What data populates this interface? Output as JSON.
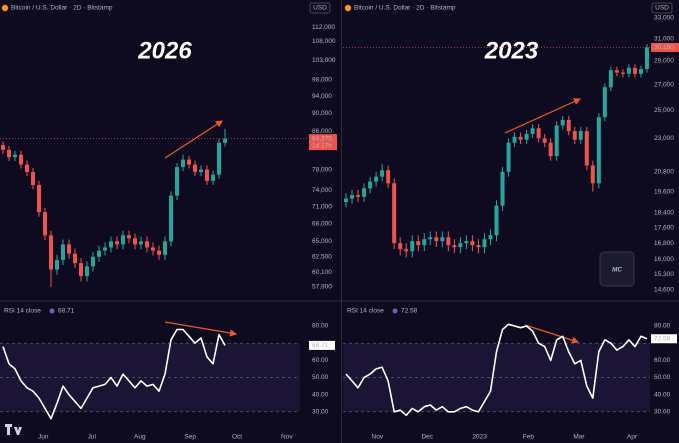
{
  "chart_data": [
    {
      "type": "candlestick",
      "title": "Bitcoin / U.S. Dollar · 2D · Bitstamp",
      "currency": "USD",
      "annotation": "2026",
      "log": true,
      "up_color": "#26a69a",
      "down_color": "#ef5350",
      "xlim": [
        0,
        50
      ],
      "ylim": [
        56000,
        120000
      ],
      "yticks": [
        {
          "value": 112000,
          "label": "112,000"
        },
        {
          "value": 108000,
          "label": "108,000"
        },
        {
          "value": 103000,
          "label": "103,000"
        },
        {
          "value": 98000,
          "label": "98,000"
        },
        {
          "value": 94000,
          "label": "94,000"
        },
        {
          "value": 90000,
          "label": "90,000"
        },
        {
          "value": 86000,
          "label": "86,000"
        },
        {
          "value": 78000,
          "label": "78,000"
        },
        {
          "value": 74000,
          "label": "74,000"
        },
        {
          "value": 71000,
          "label": "71,000"
        },
        {
          "value": 68000,
          "label": "68,000"
        },
        {
          "value": 65000,
          "label": "65,000"
        },
        {
          "value": 62500,
          "label": "62,500"
        },
        {
          "value": 60100,
          "label": "60,100"
        },
        {
          "value": 57900,
          "label": "57,900"
        }
      ],
      "open": [
        83000,
        82000,
        80500,
        81000,
        79000,
        77500,
        75000,
        70000,
        66000,
        60500,
        62000,
        64500,
        63000,
        61500,
        59500,
        61000,
        62500,
        63500,
        64000,
        65000,
        64500,
        66000,
        65500,
        64500,
        65000,
        64000,
        63500,
        62800,
        65000,
        73000,
        78500,
        80000,
        79000,
        77500,
        78000,
        75800,
        77000,
        83500
      ],
      "high": [
        83800,
        82800,
        81800,
        81800,
        79800,
        78300,
        75800,
        70800,
        66800,
        62800,
        65300,
        65300,
        63800,
        62300,
        61800,
        63300,
        64300,
        64800,
        65800,
        65800,
        66800,
        66800,
        66300,
        65800,
        65800,
        64800,
        64300,
        65800,
        73800,
        79300,
        81000,
        80800,
        79800,
        78800,
        78800,
        77800,
        84300,
        86500
      ],
      "low": [
        81200,
        79700,
        79700,
        78200,
        76700,
        74200,
        69200,
        65200,
        57900,
        59700,
        61200,
        62200,
        60700,
        58700,
        58700,
        60200,
        61700,
        62700,
        63200,
        63700,
        63700,
        64700,
        63700,
        63700,
        63200,
        62700,
        62000,
        62000,
        64200,
        72200,
        77700,
        78200,
        76700,
        76700,
        75000,
        75000,
        76200,
        82700
      ],
      "close": [
        82000,
        80500,
        81000,
        79000,
        77500,
        75000,
        70000,
        66000,
        60500,
        62000,
        64500,
        63000,
        61500,
        59500,
        61000,
        62500,
        63500,
        64000,
        65000,
        64500,
        66000,
        65500,
        64500,
        65000,
        64000,
        63500,
        62800,
        65000,
        73000,
        78500,
        80000,
        79000,
        77500,
        78000,
        75800,
        77000,
        83500,
        84375
      ],
      "last_price_label": "84,375",
      "countdown": "1d 17h"
    },
    {
      "type": "line",
      "title": "RSI 14 close",
      "color": "#ffffff",
      "band_color": "#7e57c2",
      "xlim": [
        0,
        50
      ],
      "ylim": [
        20,
        94
      ],
      "levels": [
        70,
        50,
        30
      ],
      "xticks": [
        {
          "value": 7.2,
          "label": "Jun"
        },
        {
          "value": 15.3,
          "label": "Jul"
        },
        {
          "value": 23.3,
          "label": "Aug"
        },
        {
          "value": 31.7,
          "label": "Sep"
        },
        {
          "value": 39.5,
          "label": "Oct"
        },
        {
          "value": 47.8,
          "label": "Nov"
        }
      ],
      "yticks": [
        {
          "value": 80,
          "label": "80.00"
        },
        {
          "value": 60,
          "label": "60.00"
        },
        {
          "value": 50,
          "label": "50.00"
        },
        {
          "value": 40,
          "label": "40.00"
        },
        {
          "value": 30,
          "label": "30.00"
        }
      ],
      "values": [
        68,
        58,
        55,
        48,
        44,
        42,
        38,
        32,
        26,
        35,
        45,
        40,
        36,
        32,
        38,
        44,
        45,
        46,
        50,
        45,
        52,
        48,
        44,
        48,
        45,
        46,
        42,
        52,
        72,
        78,
        78,
        74,
        70,
        73,
        62,
        58,
        75,
        68.71
      ]
    },
    {
      "type": "candlestick",
      "title": "Bitcoin / U.S. Dollar · 2D · Bitstamp",
      "currency": "USD",
      "annotation": "2023",
      "log": true,
      "logo": "MC",
      "up_color": "#26a69a",
      "down_color": "#ef5350",
      "xlim": [
        0,
        51
      ],
      "ylim": [
        14170,
        34800
      ],
      "yticks": [
        {
          "value": 33000,
          "label": "33,000"
        },
        {
          "value": 31000,
          "label": "31,000"
        },
        {
          "value": 29000,
          "label": "29,000"
        },
        {
          "value": 27000,
          "label": "27,000"
        },
        {
          "value": 25000,
          "label": "25,000"
        },
        {
          "value": 23000,
          "label": "23,000"
        },
        {
          "value": 20800,
          "label": "20,800"
        },
        {
          "value": 19600,
          "label": "19,600"
        },
        {
          "value": 18400,
          "label": "18,400"
        },
        {
          "value": 17600,
          "label": "17,600"
        },
        {
          "value": 16800,
          "label": "16,800"
        },
        {
          "value": 16000,
          "label": "16,000"
        },
        {
          "value": 15300,
          "label": "15,300"
        },
        {
          "value": 14600,
          "label": "14,600"
        }
      ],
      "open": [
        19000,
        19200,
        19400,
        19300,
        19800,
        20200,
        20500,
        20900,
        20100,
        16800,
        16500,
        16400,
        16900,
        16700,
        17000,
        17100,
        16900,
        17100,
        16700,
        16600,
        16800,
        16900,
        16700,
        16600,
        17000,
        17200,
        18800,
        20800,
        22700,
        23100,
        22900,
        23300,
        23700,
        23000,
        22700,
        21800,
        23900,
        24300,
        23500,
        22900,
        23500,
        21200,
        20100,
        24500,
        26800,
        28200,
        28000,
        27900,
        28400,
        27900,
        28300
      ],
      "high": [
        19500,
        19700,
        19700,
        20100,
        20500,
        20800,
        21300,
        21200,
        20400,
        17100,
        16800,
        17200,
        17200,
        17300,
        17400,
        17400,
        17400,
        17400,
        17000,
        17100,
        17200,
        17200,
        17000,
        17300,
        17500,
        19100,
        21100,
        23000,
        23400,
        23400,
        23600,
        24000,
        24000,
        23300,
        23000,
        24200,
        24600,
        24600,
        23800,
        23800,
        23800,
        21500,
        24800,
        27100,
        28500,
        28500,
        28300,
        28700,
        28700,
        28600,
        30500
      ],
      "low": [
        18700,
        18900,
        19000,
        19000,
        19500,
        19900,
        20200,
        19800,
        16500,
        16200,
        16100,
        16100,
        16400,
        16400,
        16700,
        16600,
        16600,
        16400,
        16300,
        16300,
        16500,
        16400,
        16300,
        16300,
        16700,
        16900,
        18500,
        20500,
        22400,
        22600,
        22600,
        23000,
        22700,
        22400,
        21500,
        21500,
        23600,
        23200,
        22600,
        22600,
        20900,
        19600,
        19800,
        24200,
        26500,
        27700,
        27600,
        27600,
        27600,
        27600,
        28000
      ],
      "close": [
        19200,
        19400,
        19300,
        19800,
        20200,
        20500,
        20900,
        20100,
        16800,
        16500,
        16400,
        16900,
        16700,
        17000,
        17100,
        16900,
        17100,
        16700,
        16600,
        16800,
        16900,
        16700,
        16600,
        17000,
        17200,
        18800,
        20800,
        22700,
        23100,
        22900,
        23300,
        23700,
        23000,
        22700,
        21800,
        23900,
        24300,
        23500,
        22900,
        23500,
        21200,
        20100,
        24500,
        26800,
        28200,
        28000,
        27900,
        28400,
        27900,
        28300,
        30190
      ],
      "last_price_label": "30,190"
    },
    {
      "type": "line",
      "title": "RSI 14 close",
      "color": "#ffffff",
      "band_color": "#7e57c2",
      "xlim": [
        0,
        51
      ],
      "ylim": [
        20,
        94
      ],
      "levels": [
        70,
        50,
        30
      ],
      "xticks": [
        {
          "value": 5.7,
          "label": "Nov"
        },
        {
          "value": 14,
          "label": "Dec"
        },
        {
          "value": 22.7,
          "label": "2023"
        },
        {
          "value": 30.8,
          "label": "Feb"
        },
        {
          "value": 39.2,
          "label": "Mar"
        },
        {
          "value": 48,
          "label": "Apr"
        }
      ],
      "yticks": [
        {
          "value": 80,
          "label": "80.00"
        },
        {
          "value": 60,
          "label": "60.00"
        },
        {
          "value": 50,
          "label": "50.00"
        },
        {
          "value": 40,
          "label": "40.00"
        },
        {
          "value": 30,
          "label": "30.00"
        }
      ],
      "values": [
        52,
        48,
        44,
        50,
        52,
        55,
        56,
        48,
        30,
        31,
        28,
        32,
        30,
        33,
        34,
        31,
        33,
        30,
        30,
        32,
        33,
        31,
        30,
        36,
        42,
        65,
        78,
        81,
        80,
        79,
        80,
        77,
        70,
        68,
        60,
        72,
        74,
        65,
        58,
        60,
        45,
        38,
        65,
        72,
        70,
        66,
        68,
        72,
        68,
        74,
        72.58
      ]
    }
  ]
}
